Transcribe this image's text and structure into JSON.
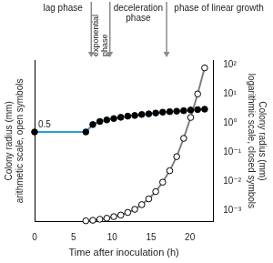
{
  "chart_data": {
    "type": "line",
    "xlabel": "Time after inoculation (h)",
    "ylabel": [
      "Colony radius (mm)",
      "arithmetic scale, open symbols"
    ],
    "y2label": [
      "Colony radius (mm)",
      "logarithmic scale, closed symbols"
    ],
    "xlim": [
      0,
      23
    ],
    "xticks": [
      0,
      5,
      10,
      15,
      20
    ],
    "ylim": [
      0,
      3.1
    ],
    "yticks": [],
    "y2lim": [
      0.0004,
      150
    ],
    "y2ticks": [
      {
        "value": 0.001,
        "label": "10⁻³"
      },
      {
        "value": 0.01,
        "label": "10⁻²"
      },
      {
        "value": 0.1,
        "label": "10⁻¹"
      },
      {
        "value": 1,
        "label": "10⁰"
      },
      {
        "value": 10,
        "label": "10¹"
      },
      {
        "value": 100,
        "label": "10²"
      }
    ],
    "log": "y2",
    "grid": false,
    "phases": [
      "lag phase",
      "exponential phase",
      "deceleration phase",
      "phase of linear growth"
    ],
    "phase_boundaries": [
      7.3,
      9.7,
      17
    ],
    "notes": [
      {
        "text": "0.5",
        "x": 0,
        "y": 0.5
      }
    ],
    "series": [
      {
        "axis": "y2",
        "color": "#2a9fd8",
        "marker": "dot",
        "line_style": "solid",
        "x": [
          0,
          6.6,
          7.5,
          8.4,
          9.3,
          10.2,
          11.1,
          12.0,
          12.9,
          13.8,
          14.7,
          15.6,
          16.5,
          17.4,
          18.3,
          19.2,
          20.1,
          21.0,
          21.9
        ],
        "values": [
          0.5,
          0.5,
          0.9,
          1.15,
          1.3,
          1.45,
          1.6,
          1.75,
          1.85,
          2.0,
          2.1,
          2.25,
          2.4,
          2.5,
          2.6,
          2.7,
          2.85,
          2.95,
          3.05
        ]
      },
      {
        "axis": "y",
        "color": "#808080",
        "marker": "ring",
        "line_style": "solid",
        "x": [
          6.6,
          7.5,
          8.4,
          9.3,
          10.2,
          11.1,
          12.0,
          12.9,
          13.8,
          14.7,
          15.6,
          16.5,
          17.4,
          18.3,
          19.2,
          20.1,
          21.0,
          21.9
        ],
        "values": [
          0.02,
          0.03,
          0.05,
          0.07,
          0.1,
          0.13,
          0.18,
          0.24,
          0.33,
          0.44,
          0.58,
          0.76,
          0.98,
          1.25,
          1.6,
          2.0,
          2.45,
          2.95
        ]
      }
    ]
  }
}
